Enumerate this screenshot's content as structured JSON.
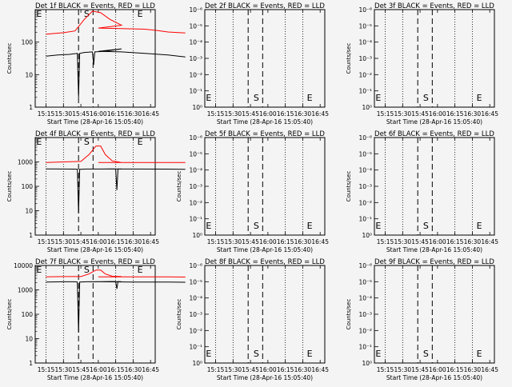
{
  "chart_data": [
    {
      "type": "line",
      "title": "Det 1f BLACK = Events, RED = LLD",
      "xlabel": "Start Time (28-Apr-16 15:05:40)",
      "ylabel": "Counts/sec",
      "x_ticks": [
        "15:15",
        "15:30",
        "15:45",
        "16:00",
        "16:15",
        "16:30",
        "16:45"
      ],
      "y_ticks": [
        "1",
        "10",
        "100"
      ],
      "y_scale": "log",
      "ylim": [
        1,
        1000
      ],
      "annotations": [
        "E",
        "S",
        "E"
      ],
      "series": [
        {
          "color": "#ff0000",
          "x": [
            15.15,
            15.3,
            15.4,
            15.48,
            15.55,
            15.62,
            15.7,
            15.8,
            16.0,
            16.2,
            16.4,
            16.5,
            16.6,
            16.75
          ],
          "y": [
            175,
            195,
            220,
            500,
            900,
            800,
            500,
            330,
            270,
            260,
            250,
            230,
            205,
            190
          ]
        },
        {
          "color": "#000000",
          "x": [
            15.15,
            15.25,
            15.35,
            15.42,
            15.43,
            15.44,
            15.48,
            15.55,
            15.56,
            15.57,
            15.65,
            15.8,
            16.0,
            16.2,
            16.4,
            16.6,
            16.75
          ],
          "y": [
            37,
            40,
            42,
            45,
            2.0,
            45,
            48,
            50,
            20,
            50,
            52,
            62,
            52,
            50,
            45,
            40,
            35
          ]
        }
      ]
    },
    {
      "type": "line",
      "title": "Det 2f BLACK = Events, RED = LLD",
      "xlabel": "Start Time (28-Apr-16 15:05:40)",
      "ylabel": "",
      "x_ticks": [
        "15:15",
        "15:30",
        "15:45",
        "16:00",
        "16:15",
        "16:30",
        "16:45"
      ],
      "y_ticks": [
        "10⁰",
        "10⁻¹",
        "10⁻²",
        "10⁻³",
        "10⁻⁴",
        "10⁻⁵",
        "10⁻⁶"
      ],
      "annotations": [
        "E",
        "S",
        "E"
      ],
      "series": []
    },
    {
      "type": "line",
      "title": "Det 3f BLACK = Events, RED = LLD",
      "xlabel": "Start Time (28-Apr-16 15:05:40)",
      "ylabel": "Counts/sec",
      "x_ticks": [
        "15:15",
        "15:30",
        "15:45",
        "16:00",
        "16:15",
        "16:30",
        "16:45"
      ],
      "y_ticks": [
        "10⁰",
        "10⁻¹",
        "10⁻²",
        "10⁻³",
        "10⁻⁴",
        "10⁻⁵",
        "10⁻⁶"
      ],
      "annotations": [
        "E",
        "S",
        "E"
      ],
      "series": []
    },
    {
      "type": "line",
      "title": "Det 4f BLACK = Events, RED = LLD",
      "xlabel": "Start Time (28-Apr-16 15:05:40)",
      "ylabel": "Counts/sec",
      "x_ticks": [
        "15:15",
        "15:30",
        "15:45",
        "16:00",
        "16:15",
        "16:30",
        "16:45"
      ],
      "y_ticks": [
        "1",
        "10",
        "100",
        "1000"
      ],
      "y_scale": "log",
      "ylim": [
        1,
        10000
      ],
      "annotations": [
        "E",
        "S",
        "E"
      ],
      "series": [
        {
          "color": "#ff0000",
          "x": [
            15.15,
            15.3,
            15.45,
            15.52,
            15.58,
            15.62,
            15.66,
            15.72,
            15.8,
            16.0,
            16.3,
            16.6,
            16.75
          ],
          "y": [
            950,
            1000,
            1050,
            2000,
            4500,
            4500,
            2000,
            1100,
            950,
            950,
            950,
            950,
            950
          ]
        },
        {
          "color": "#000000",
          "x": [
            15.15,
            15.3,
            15.4,
            15.42,
            15.43,
            15.44,
            15.5,
            15.7,
            15.75,
            15.76,
            15.77,
            15.8,
            16.0,
            16.3,
            16.6,
            16.75
          ],
          "y": [
            520,
            510,
            505,
            500,
            8.0,
            500,
            510,
            515,
            520,
            70,
            515,
            515,
            510,
            510,
            505,
            500
          ]
        }
      ]
    },
    {
      "type": "line",
      "title": "Det 5f BLACK = Events, RED = LLD",
      "xlabel": "Start Time (28-Apr-16 15:05:40)",
      "ylabel": "Counts/sec",
      "x_ticks": [
        "15:15",
        "15:30",
        "15:45",
        "16:00",
        "16:15",
        "16:30",
        "16:45"
      ],
      "y_ticks": [
        "10⁰",
        "10⁻¹",
        "10⁻²",
        "10⁻³",
        "10⁻⁴",
        "10⁻⁵",
        "10⁻⁶"
      ],
      "annotations": [
        "E",
        "S",
        "E"
      ],
      "series": []
    },
    {
      "type": "line",
      "title": "Det 6f BLACK = Events, RED = LLD",
      "xlabel": "Start Time (28-Apr-16 15:05:40)",
      "ylabel": "Counts/sec",
      "x_ticks": [
        "15:15",
        "15:30",
        "15:45",
        "16:00",
        "16:15",
        "16:30",
        "16:45"
      ],
      "y_ticks": [
        "10⁰",
        "10⁻¹",
        "10⁻²",
        "10⁻³",
        "10⁻⁴",
        "10⁻⁵",
        "10⁻⁶"
      ],
      "annotations": [
        "E",
        "S",
        "E"
      ],
      "series": []
    },
    {
      "type": "line",
      "title": "Det 7f BLACK = Events, RED = LLD",
      "xlabel": "Start Time (28-Apr-16 15:05:40)",
      "ylabel": "Counts/sec",
      "x_ticks": [
        "15:15",
        "15:30",
        "15:45",
        "16:00",
        "16:15",
        "16:30",
        "16:45"
      ],
      "y_ticks": [
        "1",
        "10",
        "100",
        "1000",
        "10000"
      ],
      "y_scale": "log",
      "ylim": [
        1,
        10000
      ],
      "annotations": [
        "E",
        "S",
        "E"
      ],
      "series": [
        {
          "color": "#ff0000",
          "x": [
            15.15,
            15.3,
            15.45,
            15.52,
            15.58,
            15.62,
            15.66,
            15.72,
            15.8,
            16.0,
            16.3,
            16.6,
            16.75
          ],
          "y": [
            3400,
            3500,
            3500,
            4500,
            6500,
            6500,
            4500,
            3600,
            3500,
            3400,
            3400,
            3400,
            3350
          ]
        },
        {
          "color": "#000000",
          "x": [
            15.15,
            15.3,
            15.4,
            15.42,
            15.43,
            15.44,
            15.5,
            15.7,
            15.75,
            15.76,
            15.77,
            15.8,
            16.0,
            16.3,
            16.6,
            16.75
          ],
          "y": [
            2100,
            2150,
            2150,
            2100,
            18,
            2100,
            2150,
            2200,
            2200,
            1100,
            2200,
            2150,
            2150,
            2100,
            2100,
            2050
          ]
        }
      ]
    },
    {
      "type": "line",
      "title": "Det 8f BLACK = Events, RED = LLD",
      "xlabel": "Start Time (28-Apr-16 15:05:40)",
      "ylabel": "Counts/sec",
      "x_ticks": [
        "15:15",
        "15:30",
        "15:45",
        "16:00",
        "16:15",
        "16:30",
        "16:45"
      ],
      "y_ticks": [
        "10⁰",
        "10⁻¹",
        "10⁻²",
        "10⁻³",
        "10⁻⁴",
        "10⁻⁵",
        "10⁻⁶"
      ],
      "annotations": [
        "E",
        "S",
        "E"
      ],
      "series": []
    },
    {
      "type": "line",
      "title": "Det 9f BLACK = Events, RED = LLD",
      "xlabel": "Start Time (28-Apr-16 15:05:40)",
      "ylabel": "Counts/sec",
      "x_ticks": [
        "15:15",
        "15:30",
        "15:45",
        "16:00",
        "16:15",
        "16:30",
        "16:45"
      ],
      "y_ticks": [
        "10⁰",
        "10⁻¹",
        "10⁻²",
        "10⁻³",
        "10⁻⁴",
        "10⁻⁵",
        "10⁻⁶"
      ],
      "annotations": [
        "E",
        "S",
        "E"
      ],
      "series": []
    }
  ]
}
